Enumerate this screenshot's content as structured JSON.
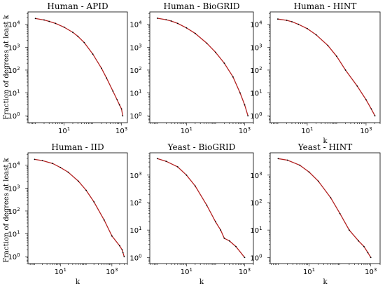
{
  "figure": {
    "ylabel": "Fraction of degrees at least k",
    "xlabel": "k",
    "line_color": "#b22222",
    "marker_color": "#000000"
  },
  "chart_data": [
    {
      "type": "line",
      "title": "Human - APID",
      "xlabel": "",
      "ylabel": "Fraction of degrees at least k",
      "xscale": "log",
      "yscale": "log",
      "xlim": [
        0.55,
        1600
      ],
      "ylim": [
        0.5,
        35000
      ],
      "xticks": [
        {
          "value": 10,
          "base": "10",
          "exp": "1"
        },
        {
          "value": 1000,
          "base": "10",
          "exp": "3"
        }
      ],
      "yticks": [
        {
          "value": 1,
          "base": "10",
          "exp": "0"
        },
        {
          "value": 10,
          "base": "10",
          "exp": "1"
        },
        {
          "value": 100,
          "base": "10",
          "exp": "2"
        },
        {
          "value": 1000,
          "base": "10",
          "exp": "3"
        },
        {
          "value": 10000,
          "base": "10",
          "exp": "4"
        }
      ],
      "x": [
        1,
        2,
        3,
        5,
        10,
        20,
        30,
        50,
        100,
        200,
        300,
        500,
        700,
        850,
        1000,
        1100
      ],
      "y": [
        18000,
        15500,
        13500,
        11000,
        7500,
        4500,
        3000,
        1600,
        500,
        120,
        45,
        12,
        5,
        3,
        2,
        1
      ]
    },
    {
      "type": "line",
      "title": "Human - BioGRID",
      "xlabel": "",
      "ylabel": "",
      "xscale": "log",
      "yscale": "log",
      "xlim": [
        0.55,
        2000
      ],
      "ylim": [
        0.5,
        35000
      ],
      "xticks": [
        {
          "value": 10,
          "base": "10",
          "exp": "1"
        },
        {
          "value": 1000,
          "base": "10",
          "exp": "3"
        }
      ],
      "yticks": [
        {
          "value": 1,
          "base": "10",
          "exp": "0"
        },
        {
          "value": 10,
          "base": "10",
          "exp": "1"
        },
        {
          "value": 100,
          "base": "10",
          "exp": "2"
        },
        {
          "value": 1000,
          "base": "10",
          "exp": "3"
        },
        {
          "value": 10000,
          "base": "10",
          "exp": "4"
        }
      ],
      "x": [
        1,
        2,
        3,
        5,
        10,
        20,
        50,
        100,
        200,
        400,
        700,
        1000,
        1300
      ],
      "y": [
        18500,
        16000,
        14000,
        11000,
        7000,
        4000,
        1500,
        600,
        200,
        50,
        10,
        3,
        1
      ]
    },
    {
      "type": "line",
      "title": "Human - HINT",
      "xlabel": "k",
      "ylabel": "",
      "xscale": "log",
      "yscale": "log",
      "xlim": [
        0.55,
        3000
      ],
      "ylim": [
        0.5,
        35000
      ],
      "xticks": [
        {
          "value": 10,
          "base": "10",
          "exp": "1"
        },
        {
          "value": 1000,
          "base": "10",
          "exp": "3"
        }
      ],
      "yticks": [
        {
          "value": 1,
          "base": "10",
          "exp": "0"
        },
        {
          "value": 10,
          "base": "10",
          "exp": "1"
        },
        {
          "value": 100,
          "base": "10",
          "exp": "2"
        },
        {
          "value": 1000,
          "base": "10",
          "exp": "3"
        },
        {
          "value": 10000,
          "base": "10",
          "exp": "4"
        }
      ],
      "x": [
        1,
        2,
        3,
        5,
        10,
        20,
        50,
        100,
        200,
        500,
        1000,
        1500,
        2000
      ],
      "y": [
        17000,
        15000,
        13000,
        10000,
        6500,
        3500,
        1200,
        400,
        100,
        20,
        5,
        2,
        1
      ]
    },
    {
      "type": "line",
      "title": "Human - IID",
      "xlabel": "k",
      "ylabel": "Fraction of degrees at least k",
      "xscale": "log",
      "yscale": "log",
      "xlim": [
        0.55,
        4000
      ],
      "ylim": [
        0.5,
        35000
      ],
      "xticks": [
        {
          "value": 10,
          "base": "10",
          "exp": "1"
        },
        {
          "value": 1000,
          "base": "10",
          "exp": "3"
        }
      ],
      "yticks": [
        {
          "value": 1,
          "base": "10",
          "exp": "0"
        },
        {
          "value": 10,
          "base": "10",
          "exp": "1"
        },
        {
          "value": 100,
          "base": "10",
          "exp": "2"
        },
        {
          "value": 1000,
          "base": "10",
          "exp": "3"
        },
        {
          "value": 10000,
          "base": "10",
          "exp": "4"
        }
      ],
      "x": [
        1,
        2,
        5,
        10,
        20,
        50,
        100,
        200,
        500,
        1000,
        2000,
        2500,
        2700,
        3000
      ],
      "y": [
        18000,
        16000,
        12000,
        8000,
        5000,
        2000,
        800,
        250,
        40,
        8,
        3,
        2,
        1.5,
        1
      ]
    },
    {
      "type": "line",
      "title": "Yeast - BioGRID",
      "xlabel": "k",
      "ylabel": "",
      "xscale": "log",
      "yscale": "log",
      "xlim": [
        0.55,
        2000
      ],
      "ylim": [
        0.6,
        6500
      ],
      "xticks": [
        {
          "value": 10,
          "base": "10",
          "exp": "1"
        },
        {
          "value": 1000,
          "base": "10",
          "exp": "3"
        }
      ],
      "yticks": [
        {
          "value": 1,
          "base": "10",
          "exp": "0"
        },
        {
          "value": 10,
          "base": "10",
          "exp": "1"
        },
        {
          "value": 100,
          "base": "10",
          "exp": "2"
        },
        {
          "value": 1000,
          "base": "10",
          "exp": "3"
        }
      ],
      "x": [
        1,
        2,
        5,
        10,
        20,
        50,
        100,
        150,
        200,
        300,
        500,
        1000
      ],
      "y": [
        4000,
        3200,
        2000,
        1000,
        400,
        80,
        20,
        10,
        5,
        4,
        2.5,
        1
      ]
    },
    {
      "type": "line",
      "title": "Yeast - HINT",
      "xlabel": "k",
      "ylabel": "",
      "xscale": "log",
      "yscale": "log",
      "xlim": [
        0.55,
        2000
      ],
      "ylim": [
        0.6,
        6500
      ],
      "xticks": [
        {
          "value": 10,
          "base": "10",
          "exp": "1"
        },
        {
          "value": 1000,
          "base": "10",
          "exp": "3"
        }
      ],
      "yticks": [
        {
          "value": 1,
          "base": "10",
          "exp": "0"
        },
        {
          "value": 10,
          "base": "10",
          "exp": "1"
        },
        {
          "value": 100,
          "base": "10",
          "exp": "2"
        },
        {
          "value": 1000,
          "base": "10",
          "exp": "3"
        }
      ],
      "x": [
        1,
        2,
        5,
        10,
        20,
        50,
        100,
        200,
        400,
        600,
        800,
        1000
      ],
      "y": [
        4000,
        3500,
        2300,
        1300,
        600,
        150,
        40,
        10,
        4,
        2.5,
        1.5,
        1
      ]
    }
  ]
}
